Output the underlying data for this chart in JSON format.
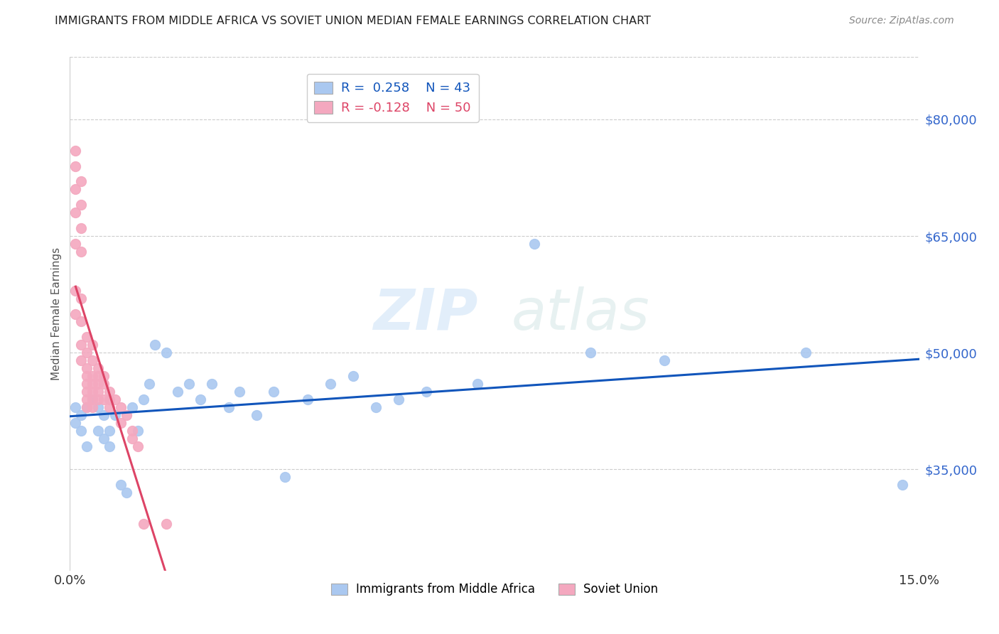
{
  "title": "IMMIGRANTS FROM MIDDLE AFRICA VS SOVIET UNION MEDIAN FEMALE EARNINGS CORRELATION CHART",
  "source": "Source: ZipAtlas.com",
  "ylabel": "Median Female Earnings",
  "xlim": [
    0.0,
    0.15
  ],
  "ylim": [
    22000,
    88000
  ],
  "yticks": [
    35000,
    50000,
    65000,
    80000
  ],
  "background_color": "#ffffff",
  "grid_color": "#cccccc",
  "watermark_zip": "ZIP",
  "watermark_atlas": "atlas",
  "legend_r1": "R =  0.258",
  "legend_n1": "N = 43",
  "legend_r2": "R = -0.128",
  "legend_n2": "N = 50",
  "series1_color": "#aac8f0",
  "series2_color": "#f4a8bf",
  "line1_color": "#1155bb",
  "line2_color": "#dd4466",
  "series1_label": "Immigrants from Middle Africa",
  "series2_label": "Soviet Union",
  "blue_x": [
    0.001,
    0.001,
    0.002,
    0.002,
    0.003,
    0.003,
    0.004,
    0.005,
    0.005,
    0.006,
    0.006,
    0.007,
    0.007,
    0.008,
    0.009,
    0.01,
    0.011,
    0.012,
    0.013,
    0.014,
    0.015,
    0.017,
    0.019,
    0.021,
    0.023,
    0.025,
    0.028,
    0.03,
    0.033,
    0.036,
    0.038,
    0.042,
    0.046,
    0.05,
    0.054,
    0.058,
    0.063,
    0.072,
    0.082,
    0.092,
    0.105,
    0.13,
    0.147
  ],
  "blue_y": [
    43000,
    41000,
    40000,
    42000,
    38000,
    43000,
    44000,
    40000,
    43000,
    39000,
    42000,
    40000,
    38000,
    42000,
    33000,
    32000,
    43000,
    40000,
    44000,
    46000,
    51000,
    50000,
    45000,
    46000,
    44000,
    46000,
    43000,
    45000,
    42000,
    45000,
    34000,
    44000,
    46000,
    47000,
    43000,
    44000,
    45000,
    46000,
    64000,
    50000,
    49000,
    50000,
    33000
  ],
  "pink_x": [
    0.001,
    0.001,
    0.001,
    0.001,
    0.001,
    0.001,
    0.001,
    0.002,
    0.002,
    0.002,
    0.002,
    0.002,
    0.002,
    0.002,
    0.002,
    0.003,
    0.003,
    0.003,
    0.003,
    0.003,
    0.003,
    0.003,
    0.003,
    0.004,
    0.004,
    0.004,
    0.004,
    0.004,
    0.004,
    0.004,
    0.005,
    0.005,
    0.005,
    0.005,
    0.005,
    0.006,
    0.006,
    0.006,
    0.007,
    0.007,
    0.007,
    0.008,
    0.009,
    0.009,
    0.01,
    0.011,
    0.011,
    0.012,
    0.013,
    0.017
  ],
  "pink_y": [
    76000,
    74000,
    71000,
    68000,
    64000,
    58000,
    55000,
    72000,
    69000,
    66000,
    63000,
    57000,
    54000,
    51000,
    49000,
    52000,
    50000,
    48000,
    47000,
    46000,
    45000,
    44000,
    43000,
    51000,
    49000,
    47000,
    46000,
    45000,
    44000,
    43000,
    48000,
    47000,
    46000,
    45000,
    44000,
    47000,
    46000,
    44000,
    45000,
    44000,
    43000,
    44000,
    43000,
    41000,
    42000,
    40000,
    39000,
    38000,
    28000,
    28000
  ]
}
